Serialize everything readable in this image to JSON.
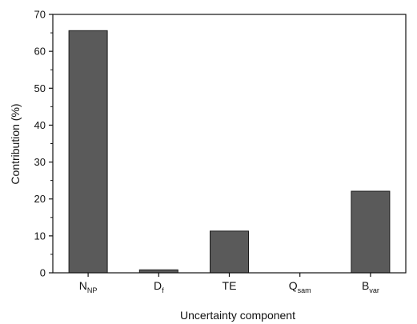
{
  "chart_data": {
    "type": "bar",
    "categories": [
      {
        "main": "N",
        "sub": "NP"
      },
      {
        "main": "D",
        "sub": "f"
      },
      {
        "main": "TE",
        "sub": ""
      },
      {
        "main": "Q",
        "sub": "sam"
      },
      {
        "main": "B",
        "sub": "var"
      }
    ],
    "values": [
      65.6,
      0.8,
      11.3,
      0,
      22.1
    ],
    "xlabel": "Uncertainty component",
    "ylabel": "Contribution (%)",
    "ylim": [
      0,
      70
    ],
    "yticks": [
      0,
      10,
      20,
      30,
      40,
      50,
      60,
      70
    ],
    "grid": false,
    "bar_color": "#5a5a5a",
    "edge_color": "#1a1a1a"
  }
}
